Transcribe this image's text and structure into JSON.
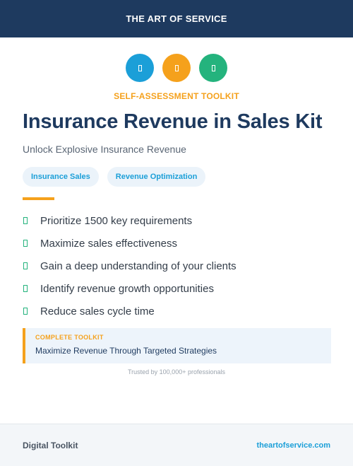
{
  "header": {
    "brand": "THE ART OF SERVICE"
  },
  "icons": [
    {
      "name": "icon-1",
      "color": "#1b9fd8"
    },
    {
      "name": "icon-2",
      "color": "#f5a11c"
    },
    {
      "name": "icon-3",
      "color": "#24b37d"
    }
  ],
  "eyebrow": "SELF-ASSESSMENT TOOLKIT",
  "title": "Insurance Revenue in Sales Kit",
  "subtitle": "Unlock Explosive Insurance Revenue",
  "tags": [
    "Insurance Sales",
    "Revenue Optimization"
  ],
  "features": [
    "Prioritize 1500 key requirements",
    "Maximize sales effectiveness",
    "Gain a deep understanding of your clients",
    "Identify revenue growth opportunities",
    "Reduce sales cycle time"
  ],
  "callout": {
    "label": "COMPLETE TOOLKIT",
    "text": "Maximize Revenue Through Targeted Strategies"
  },
  "trust": "Trusted by 100,000+ professionals",
  "footer": {
    "left": "Digital Toolkit",
    "right": "theartofservice.com"
  },
  "colors": {
    "navy": "#1e3a5f",
    "orange": "#f5a11c",
    "blue": "#1b9fd8",
    "green": "#24b37d"
  }
}
